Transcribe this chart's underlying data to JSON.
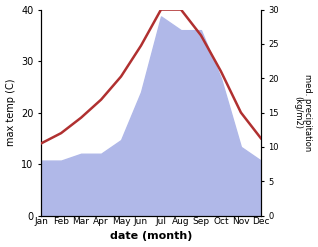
{
  "months": [
    "Jan",
    "Feb",
    "Mar",
    "Apr",
    "May",
    "Jun",
    "Jul",
    "Aug",
    "Sep",
    "Oct",
    "Nov",
    "Dec"
  ],
  "max_temp": [
    14.0,
    16.0,
    19.0,
    22.5,
    27.0,
    33.0,
    40.0,
    40.0,
    35.0,
    28.0,
    20.0,
    15.0
  ],
  "precipitation": [
    8.0,
    8.0,
    9.0,
    9.0,
    11.0,
    18.0,
    29.0,
    27.0,
    27.0,
    20.0,
    10.0,
    8.0
  ],
  "temp_color": "#b03030",
  "precip_fill_color": "#b0b8e8",
  "ylim_left": [
    0,
    40
  ],
  "ylim_right": [
    0,
    30
  ],
  "yticks_left": [
    0,
    10,
    20,
    30,
    40
  ],
  "yticks_right": [
    0,
    5,
    10,
    15,
    20,
    25,
    30
  ],
  "xlabel": "date (month)",
  "ylabel_left": "max temp (C)",
  "ylabel_right": "med. precipitation\n(kg/m2)",
  "xlabel_fontsize": 8,
  "ylabel_fontsize": 7,
  "tick_labelsize": 7,
  "linewidth": 1.8
}
